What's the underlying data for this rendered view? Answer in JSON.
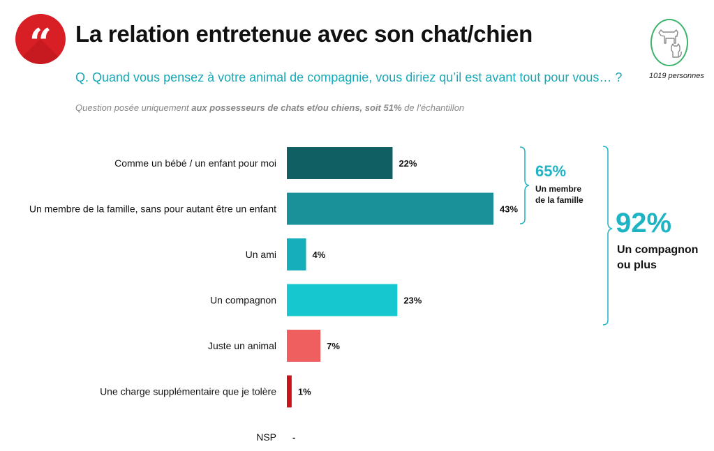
{
  "header": {
    "title": "La relation entretenue avec son chat/chien",
    "question": "Q. Quand vous pensez à votre animal de compagnie, vous diriez qu’il est avant tout pour vous… ?",
    "note_prefix": "Question posée uniquement ",
    "note_bold": "aux possesseurs de chats et/ou chiens, soit 51%",
    "note_suffix": " de l’échantillon",
    "sample": "1019 personnes",
    "quote_mark": "“"
  },
  "brackets": {
    "family_value": "65%",
    "family_label_1": "Un membre",
    "family_label_2": "de la famille",
    "companion_value": "92%",
    "companion_label_1": "Un compagnon",
    "companion_label_2": "ou plus"
  },
  "colors": {
    "brand_red": "#d81f26",
    "question_teal": "#17a9b8",
    "bracket_teal": "#1fb4c4",
    "pet_icon_green": "#3bb36a"
  },
  "chart_data": {
    "type": "bar",
    "orientation": "horizontal",
    "categories": [
      "Comme un bébé / un enfant pour moi",
      "Un membre de la famille, sans pour autant être un enfant",
      "Un ami",
      "Un compagnon",
      "Juste un animal",
      "Une charge supplémentaire que je tolère",
      "NSP"
    ],
    "values": [
      22,
      43,
      4,
      23,
      7,
      1,
      null
    ],
    "value_labels": [
      "22%",
      "43%",
      "4%",
      "23%",
      "7%",
      "1%",
      "-"
    ],
    "bar_colors": [
      "#0f5f63",
      "#1a9199",
      "#17aebb",
      "#17c7d0",
      "#f05f5f",
      "#c5141a",
      "#ffffff"
    ],
    "xlim": [
      0,
      43
    ]
  }
}
